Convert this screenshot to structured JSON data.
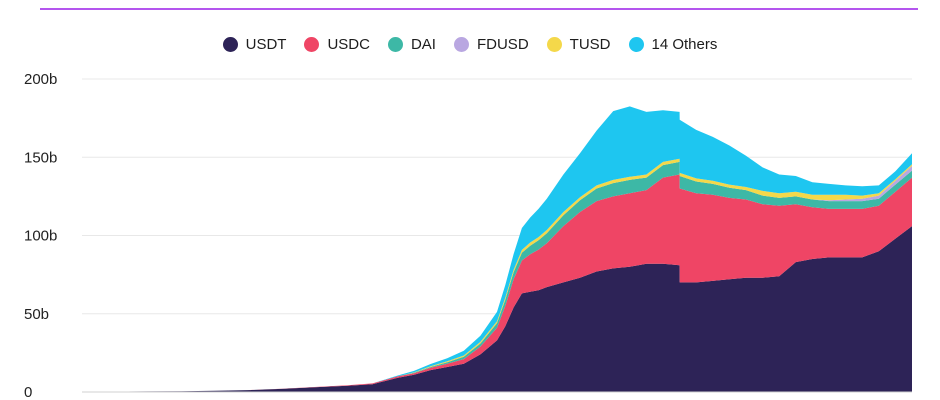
{
  "chart_data": {
    "type": "area",
    "stacked": true,
    "ylim": [
      0,
      200
    ],
    "y_ticks": [
      {
        "value": 0,
        "label": "0"
      },
      {
        "value": 50,
        "label": "50b"
      },
      {
        "value": 100,
        "label": "100b"
      },
      {
        "value": 150,
        "label": "150b"
      },
      {
        "value": 200,
        "label": "200b"
      }
    ],
    "grid": true,
    "legend_position": "top-center",
    "x": [
      0,
      0.04,
      0.08,
      0.12,
      0.16,
      0.2,
      0.24,
      0.28,
      0.32,
      0.35,
      0.38,
      0.4,
      0.42,
      0.44,
      0.46,
      0.48,
      0.5,
      0.51,
      0.52,
      0.53,
      0.54,
      0.55,
      0.56,
      0.58,
      0.6,
      0.62,
      0.64,
      0.66,
      0.68,
      0.7,
      0.72,
      0.7201,
      0.74,
      0.76,
      0.78,
      0.8,
      0.82,
      0.84,
      0.86,
      0.88,
      0.9,
      0.92,
      0.94,
      0.96,
      0.98,
      1.0
    ],
    "series": [
      {
        "name": "USDT",
        "color": "#2d2357",
        "values": [
          0.3,
          0.3,
          0.4,
          0.5,
          0.8,
          1.2,
          2,
          3,
          4,
          5,
          9,
          11,
          14,
          16,
          18,
          24,
          33,
          42,
          54,
          63,
          64,
          65,
          67,
          70,
          73,
          77,
          79,
          80,
          82,
          82,
          81,
          70,
          70,
          71,
          72,
          73,
          73,
          74,
          83,
          85,
          86,
          86,
          86,
          90,
          98,
          106
        ]
      },
      {
        "name": "USDC",
        "color": "#ef4565",
        "values": [
          0,
          0,
          0,
          0,
          0,
          0,
          0.1,
          0.2,
          0.3,
          0.5,
          1,
          1,
          1.5,
          2,
          3,
          5,
          8,
          13,
          18,
          21,
          24,
          26,
          28,
          36,
          42,
          45,
          46,
          47,
          47,
          55,
          58,
          60,
          57,
          55,
          52,
          50,
          47,
          45,
          37,
          33,
          31,
          31,
          31,
          29,
          30,
          31
        ]
      },
      {
        "name": "DAI",
        "color": "#3db8a6",
        "values": [
          0,
          0,
          0,
          0,
          0,
          0,
          0,
          0,
          0,
          0,
          0,
          0.3,
          0.5,
          1,
          1.5,
          2,
          3,
          4,
          4.5,
          5,
          5.5,
          6,
          6.5,
          7,
          7.5,
          8,
          8.5,
          8.5,
          8,
          8,
          8,
          8,
          7.5,
          7,
          6.5,
          6,
          5.5,
          5,
          5,
          5,
          5,
          5,
          5,
          4.5,
          4.5,
          4.5
        ]
      },
      {
        "name": "FDUSD",
        "color": "#b9a7e1",
        "values": [
          0,
          0,
          0,
          0,
          0,
          0,
          0,
          0,
          0,
          0,
          0,
          0,
          0,
          0,
          0,
          0,
          0,
          0,
          0,
          0,
          0,
          0,
          0,
          0,
          0,
          0,
          0,
          0,
          0,
          0,
          0,
          0,
          0,
          0,
          0,
          0,
          0,
          0,
          0,
          0,
          0.5,
          1,
          1.5,
          2,
          2.5,
          3
        ]
      },
      {
        "name": "TUSD",
        "color": "#f4d84a",
        "values": [
          0,
          0,
          0,
          0,
          0,
          0,
          0,
          0,
          0,
          0,
          0,
          0.2,
          0.4,
          0.6,
          0.8,
          1,
          1.2,
          1.4,
          1.6,
          1.8,
          2,
          2,
          2,
          2,
          2,
          2,
          2,
          2,
          2,
          2,
          2,
          2,
          2,
          2,
          2,
          2,
          3,
          3,
          3,
          3,
          3.5,
          3,
          2,
          1.5,
          1,
          1
        ]
      },
      {
        "name": "14 Others",
        "color": "#1ec6f0",
        "values": [
          0,
          0,
          0,
          0,
          0,
          0,
          0,
          0,
          0,
          0,
          0.5,
          1,
          1.5,
          2,
          3,
          4,
          6,
          8,
          10,
          14,
          16,
          18,
          20,
          24,
          28,
          35,
          44,
          45,
          40,
          33,
          30,
          34,
          31,
          28,
          25,
          20,
          15,
          12,
          10,
          8,
          7,
          6,
          6,
          5,
          5,
          7
        ]
      }
    ]
  }
}
